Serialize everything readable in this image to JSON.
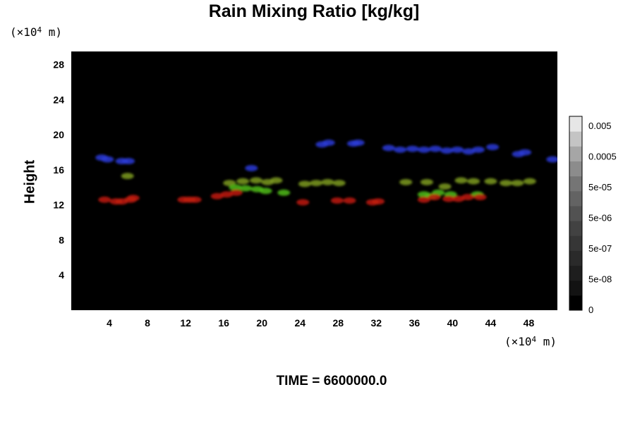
{
  "chart_data": {
    "type": "heatmap",
    "title": "Rain Mixing Ratio [kg/kg]",
    "ylabel": "Height",
    "x_unit": [
      "(×10",
      "4",
      " m)"
    ],
    "y_unit": [
      "(×10",
      "4",
      " m)"
    ],
    "time_label": "TIME = 6600000.0",
    "xlim": [
      0,
      51
    ],
    "ylim": [
      0,
      29.5
    ],
    "x_ticks": [
      4,
      8,
      12,
      16,
      20,
      24,
      28,
      32,
      36,
      40,
      44,
      48
    ],
    "y_ticks": [
      4,
      8,
      12,
      16,
      20,
      24,
      28
    ],
    "background_color": "#000000",
    "colorbar": {
      "labels": [
        "0.005",
        "0.0005",
        "5e-05",
        "5e-06",
        "5e-07",
        "5e-08",
        "0"
      ],
      "levels": 13,
      "colors": [
        "#000000",
        "#121212",
        "#1e1e1e",
        "#2a2a2a",
        "#363636",
        "#424242",
        "#525252",
        "#636363",
        "#757575",
        "#8c8c8c",
        "#a6a6a6",
        "#c4c4c4",
        "#e6e6e6"
      ]
    },
    "series": [
      {
        "color": "#2a3bd6",
        "points": [
          [
            3.2,
            17.4
          ],
          [
            3.8,
            17.2
          ],
          [
            5.3,
            17.0
          ],
          [
            6.0,
            17.0
          ],
          [
            18.9,
            16.2
          ],
          [
            26.3,
            18.9
          ],
          [
            27.0,
            19.1
          ],
          [
            29.6,
            19.0
          ],
          [
            30.1,
            19.1
          ],
          [
            33.3,
            18.5
          ],
          [
            34.5,
            18.3
          ],
          [
            35.8,
            18.4
          ],
          [
            37.0,
            18.3
          ],
          [
            38.2,
            18.4
          ],
          [
            39.4,
            18.2
          ],
          [
            40.5,
            18.3
          ],
          [
            41.7,
            18.1
          ],
          [
            42.7,
            18.3
          ],
          [
            44.2,
            18.6
          ],
          [
            46.9,
            17.8
          ],
          [
            47.6,
            18.0
          ],
          [
            50.5,
            17.2
          ]
        ]
      },
      {
        "color": "#7c9a22",
        "points": [
          [
            5.9,
            15.3
          ],
          [
            16.6,
            14.5
          ],
          [
            18.0,
            14.7
          ],
          [
            19.4,
            14.8
          ],
          [
            20.6,
            14.6
          ],
          [
            21.5,
            14.8
          ],
          [
            24.5,
            14.4
          ],
          [
            25.7,
            14.5
          ],
          [
            26.9,
            14.6
          ],
          [
            28.1,
            14.5
          ],
          [
            35.1,
            14.6
          ],
          [
            37.3,
            14.6
          ],
          [
            39.2,
            14.1
          ],
          [
            40.9,
            14.8
          ],
          [
            42.2,
            14.7
          ],
          [
            44.0,
            14.7
          ],
          [
            45.6,
            14.5
          ],
          [
            46.8,
            14.5
          ],
          [
            48.1,
            14.7
          ]
        ]
      },
      {
        "color": "#4fbc16",
        "points": [
          [
            17.2,
            14.0
          ],
          [
            18.3,
            13.9
          ],
          [
            19.5,
            13.8
          ],
          [
            20.4,
            13.6
          ],
          [
            22.3,
            13.4
          ],
          [
            37.0,
            13.2
          ],
          [
            37.7,
            13.0
          ],
          [
            38.5,
            13.4
          ],
          [
            39.8,
            13.2
          ],
          [
            42.6,
            13.2
          ]
        ]
      },
      {
        "color": "#c01a12",
        "points": [
          [
            3.5,
            12.6
          ],
          [
            4.7,
            12.4
          ],
          [
            5.3,
            12.4
          ],
          [
            6.2,
            12.6
          ],
          [
            6.5,
            12.8
          ],
          [
            11.8,
            12.6
          ],
          [
            12.4,
            12.6
          ],
          [
            13.0,
            12.6
          ],
          [
            15.3,
            13.0
          ],
          [
            16.3,
            13.2
          ],
          [
            17.3,
            13.4
          ],
          [
            24.3,
            12.3
          ],
          [
            27.9,
            12.5
          ],
          [
            29.2,
            12.5
          ],
          [
            31.6,
            12.3
          ],
          [
            32.2,
            12.4
          ],
          [
            37.0,
            12.6
          ],
          [
            38.1,
            12.9
          ],
          [
            39.6,
            12.7
          ],
          [
            40.6,
            12.7
          ],
          [
            41.6,
            12.9
          ],
          [
            42.9,
            12.9
          ]
        ]
      }
    ]
  }
}
